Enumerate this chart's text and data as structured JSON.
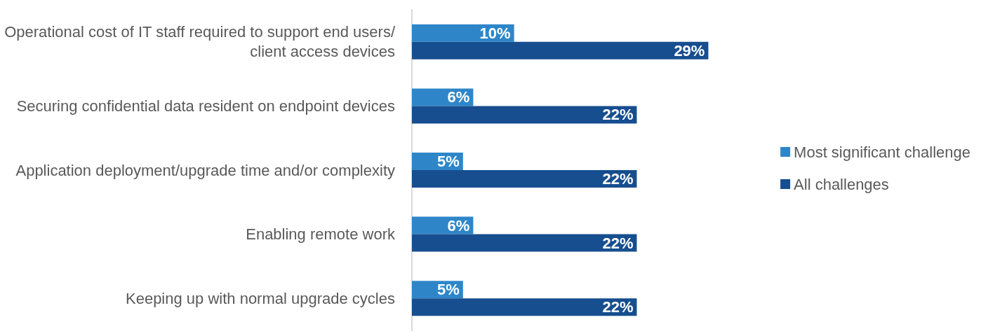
{
  "chart_data": {
    "type": "bar",
    "orientation": "horizontal",
    "legend": "right",
    "categories": [
      "Operational cost of IT staff required to support end users/client access devices",
      "Securing confidential data resident on endpoint devices",
      "Application deployment/upgrade time and/or complexity",
      "Enabling remote work",
      "Keeping up with normal upgrade cycles"
    ],
    "series": [
      {
        "name": "Most significant challenge",
        "color": "#2e86c8",
        "values": [
          10,
          6,
          5,
          6,
          5
        ],
        "value_labels": [
          "10%",
          "6%",
          "5%",
          "6%",
          "5%"
        ]
      },
      {
        "name": "All challenges",
        "color": "#164e8f",
        "values": [
          29,
          22,
          22,
          22,
          22
        ],
        "value_labels": [
          "29%",
          "22%",
          "22%",
          "22%",
          "22%"
        ]
      }
    ]
  }
}
